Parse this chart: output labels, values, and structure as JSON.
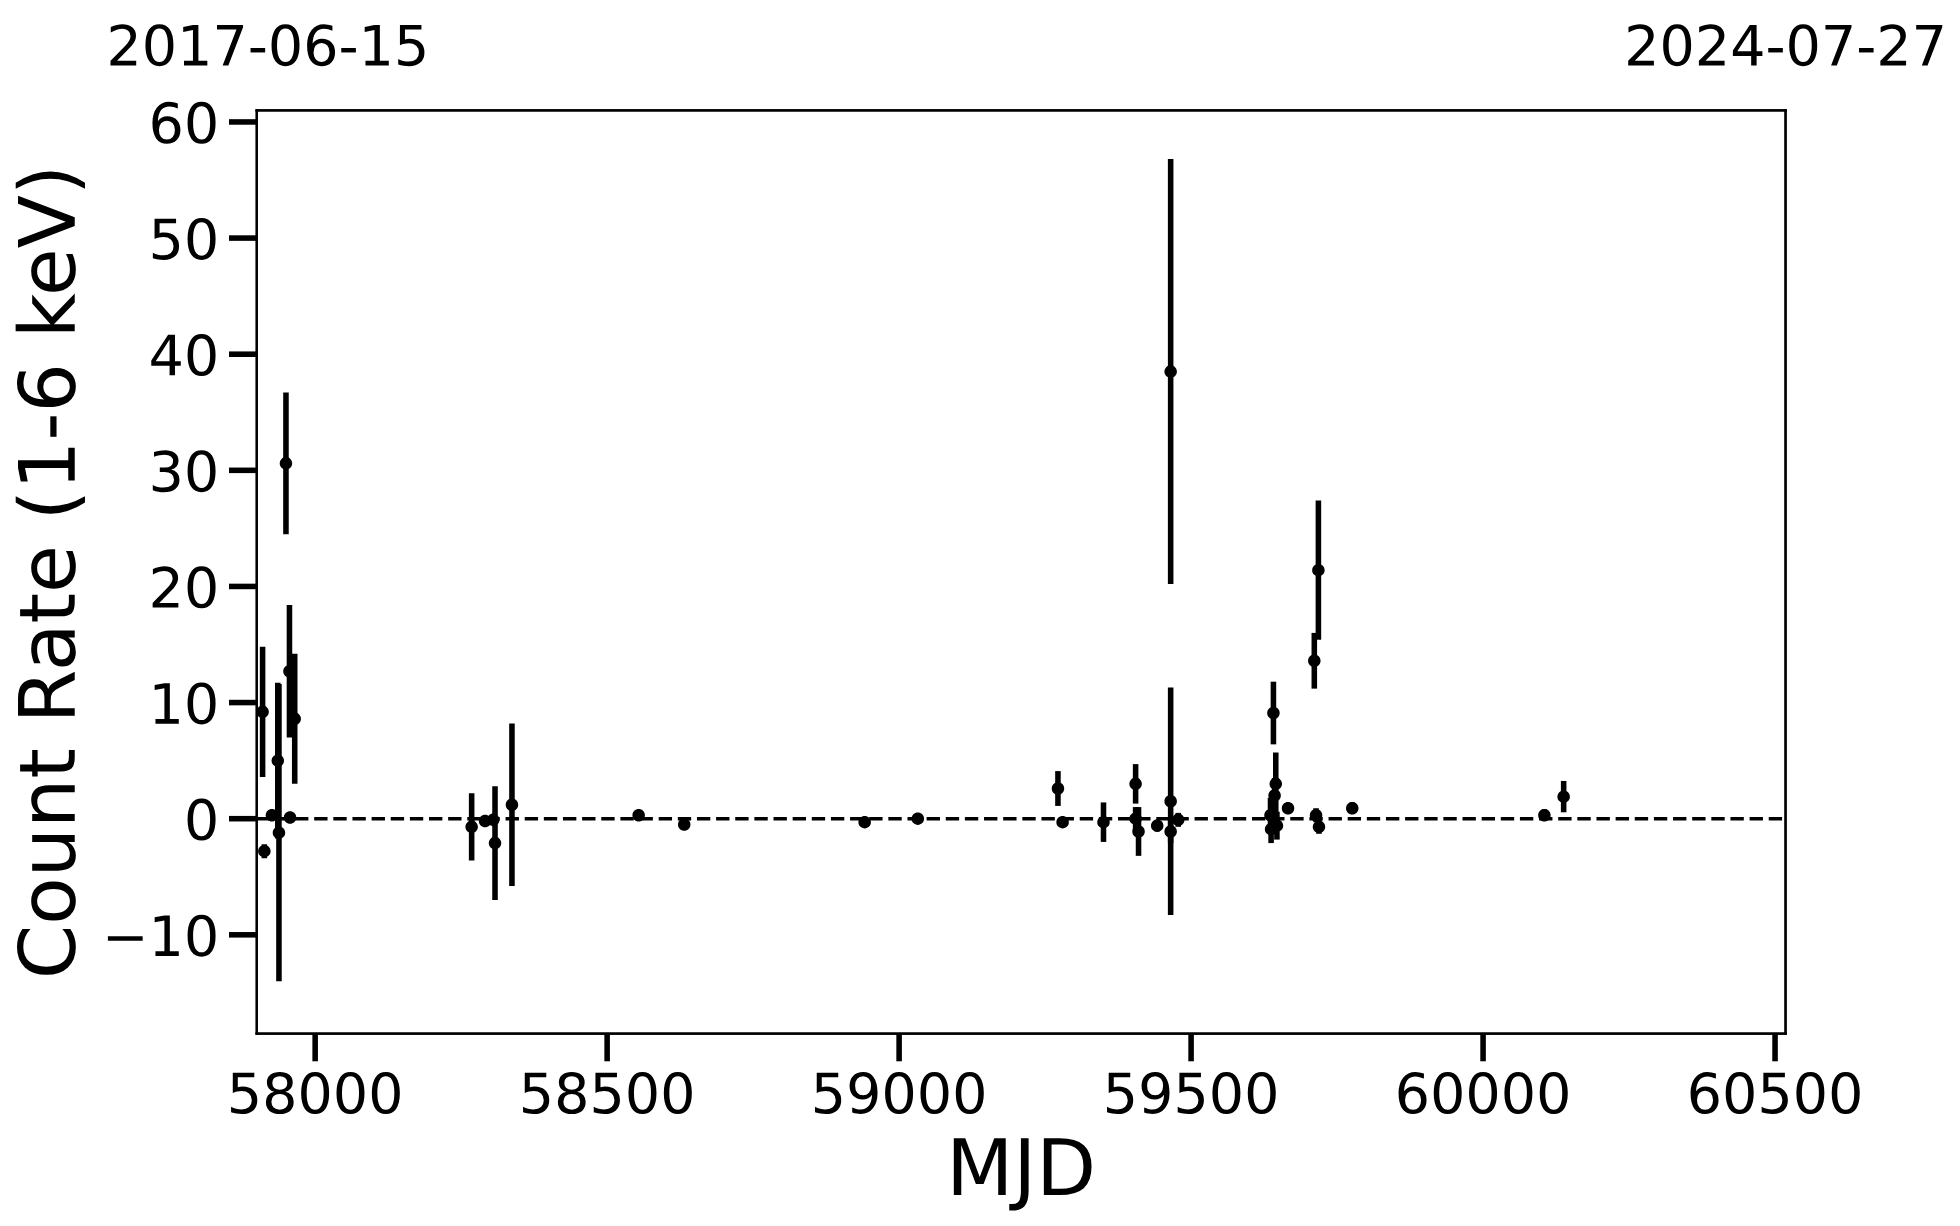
{
  "chart_data": {
    "type": "scatter",
    "xlabel": "MJD",
    "ylabel": "Count Rate (1-6 keV)",
    "x": [
      57910,
      57913,
      57926,
      57936,
      57938,
      57950,
      57956,
      57957,
      57965,
      58268,
      58291,
      58305,
      58308,
      58337,
      58554,
      58632,
      58941,
      59032,
      59272,
      59280,
      59350,
      59405,
      59405,
      59410,
      59442,
      59465,
      59465,
      59465,
      59474,
      59476,
      59478,
      59636,
      59637,
      59638,
      59639,
      59641,
      59643,
      59645,
      59647,
      59666,
      59711,
      59714,
      59718,
      59719,
      59776,
      60105,
      60138
    ],
    "values": [
      9.2,
      -2.8,
      0.3,
      5.0,
      -1.2,
      30.6,
      12.7,
      0.1,
      8.6,
      -0.7,
      -0.2,
      -0.1,
      -2.1,
      1.2,
      0.3,
      -0.5,
      -0.3,
      0.0,
      2.6,
      -0.3,
      -0.3,
      3.0,
      0.0,
      -1.1,
      -0.6,
      38.5,
      1.5,
      -1.1,
      null,
      null,
      -0.1,
      0.3,
      -0.9,
      null,
      null,
      9.1,
      2.0,
      3.0,
      -0.6,
      0.9,
      13.6,
      0.3,
      21.4,
      -0.7,
      0.9,
      0.3,
      1.9
    ],
    "errors": [
      5.6,
      0.6,
      null,
      6.7,
      12.8,
      6.1,
      5.7,
      null,
      5.6,
      2.9,
      null,
      null,
      4.9,
      7.0,
      null,
      null,
      null,
      null,
      1.5,
      null,
      1.7,
      1.7,
      1.0,
      2.1,
      0.5,
      18.3,
      9.8,
      1.0,
      null,
      null,
      0.6,
      1.5,
      1.2,
      null,
      null,
      2.7,
      1.5,
      2.7,
      1.2,
      null,
      2.4,
      0.6,
      6.0,
      0.6,
      0.5,
      0.5,
      1.35
    ],
    "color": "#000000",
    "marker": "circle",
    "xlim": [
      57900,
      60518
    ],
    "xticks": [
      58000,
      58500,
      59000,
      59500,
      60000,
      60500
    ],
    "ylim": [
      -18.5,
      61
    ],
    "yticks": [
      {
        "value": -10,
        "label": "−10"
      },
      0,
      10,
      20,
      30,
      40,
      50,
      60
    ],
    "x2lim": [
      "2017-05-27",
      "2024-07-27"
    ],
    "x2ticks": [
      "2017-06-15",
      "2024-07-27"
    ],
    "ref_lines": [
      {
        "axis": "y",
        "value": 0,
        "color": "#000000",
        "line_style": "dashed"
      }
    ],
    "grid": false,
    "legend": false
  }
}
